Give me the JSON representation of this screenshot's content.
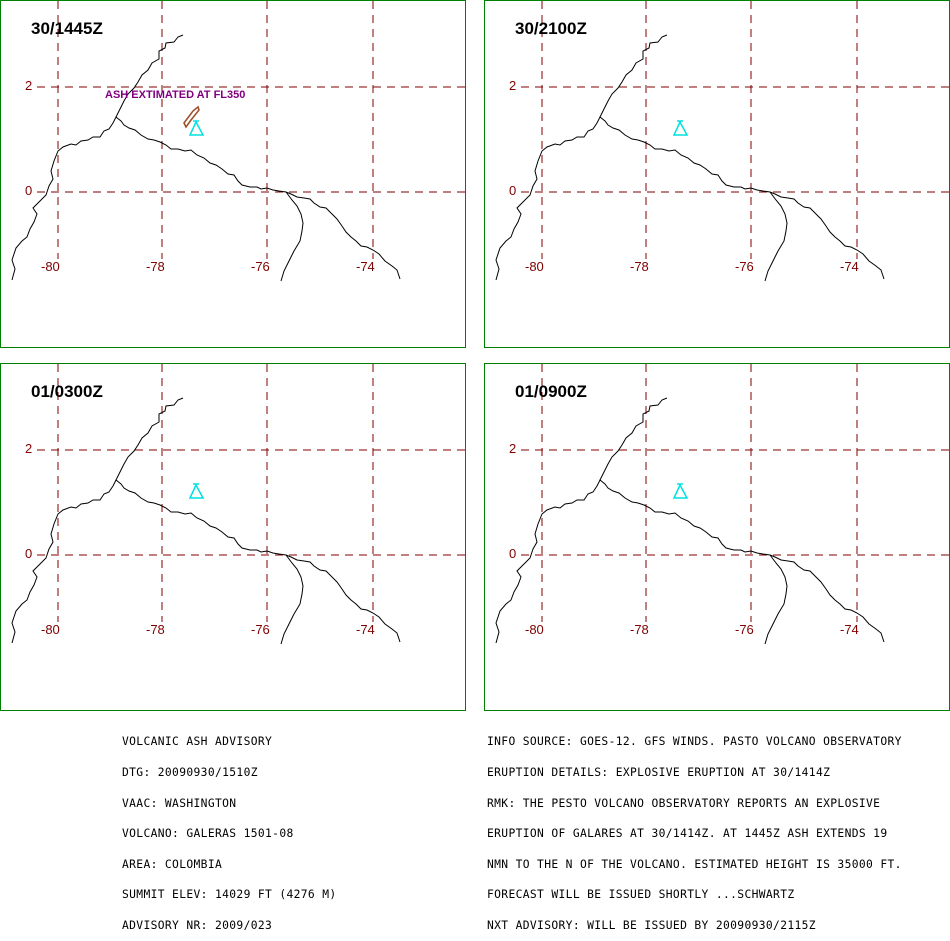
{
  "panels": [
    {
      "title": "30/1445Z",
      "ash_label": "ASH EXTIMATED AT FL350",
      "has_ash": true
    },
    {
      "title": "30/2100Z",
      "has_ash": false
    },
    {
      "title": "01/0300Z",
      "has_ash": false
    },
    {
      "title": "01/0900Z",
      "has_ash": false
    }
  ],
  "x_ticks": [
    "-80",
    "-78",
    "-76",
    "-74"
  ],
  "y_ticks": [
    "2",
    "0"
  ],
  "colors": {
    "frame": "#008000",
    "grid": "#800000",
    "coastline": "#000000",
    "volcano": "#00e0e0",
    "ash": "#a0522d",
    "ash_label": "#800080"
  },
  "volcano_icon": "volcano-triangle-icon",
  "advisory_left": [
    "VOLCANIC ASH ADVISORY",
    "DTG: 20090930/1510Z",
    "VAAC: WASHINGTON",
    "VOLCANO: GALERAS 1501-08",
    "AREA: COLOMBIA",
    "SUMMIT ELEV: 14029 FT (4276 M)",
    "ADVISORY NR: 2009/023"
  ],
  "advisory_right": [
    "INFO SOURCE: GOES-12. GFS WINDS. PASTO VOLCANO OBSERVATORY",
    "ERUPTION DETAILS: EXPLOSIVE ERUPTION AT 30/1414Z",
    "RMK: THE PESTO VOLCANO OBSERVATORY REPORTS AN EXPLOSIVE",
    "ERUPTION OF GALARES AT 30/1414Z. AT 1445Z ASH EXTENDS 19",
    "NMN TO THE N OF THE VOLCANO. ESTIMATED HEIGHT IS 35000 FT.",
    "FORECAST WILL BE ISSUED SHORTLY ...SCHWARTZ",
    "NXT ADVISORY: WILL BE ISSUED BY 20090930/2115Z"
  ]
}
